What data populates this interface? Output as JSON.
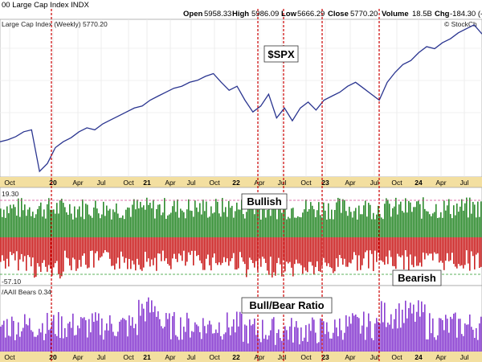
{
  "header": {
    "title": "00 Large Cap Index  INDX",
    "open_label": "Open",
    "open_value": "5958.33",
    "high_label": "High",
    "high_value": "5986.09",
    "low_label": "Low",
    "low_value": "5666.29",
    "close_label": "Close",
    "close_value": "5770.20",
    "volume_label": "Volume",
    "volume_value": "18.5B",
    "chg_label": "Chg",
    "chg_value": "-184.30 (-3.",
    "watermark": "© StockCh"
  },
  "panels": {
    "price_label": "Large Cap Index (Weekly) 5770.20",
    "sentiment_label": "19.30",
    "bear_level_label": "-57.10",
    "ratio_label": "/AAII Bears 0.34"
  },
  "annotations": {
    "spx": "$SPX",
    "bullish": "Bullish",
    "bearish": "Bearish",
    "ratio": "Bull/Bear Ratio"
  },
  "x_axis": {
    "ticks": [
      {
        "label": "Oct",
        "bold": false
      },
      {
        "label": "20",
        "bold": true
      },
      {
        "label": "Apr",
        "bold": false
      },
      {
        "label": "Jul",
        "bold": false
      },
      {
        "label": "Oct",
        "bold": false
      },
      {
        "label": "21",
        "bold": true
      },
      {
        "label": "Apr",
        "bold": false
      },
      {
        "label": "Jul",
        "bold": false
      },
      {
        "label": "Oct",
        "bold": false
      },
      {
        "label": "22",
        "bold": true
      },
      {
        "label": "Apr",
        "bold": false
      },
      {
        "label": "Jul",
        "bold": false
      },
      {
        "label": "Oct",
        "bold": false
      },
      {
        "label": "23",
        "bold": true
      },
      {
        "label": "Apr",
        "bold": false
      },
      {
        "label": "Jul",
        "bold": false
      },
      {
        "label": "Oct",
        "bold": false
      },
      {
        "label": "24",
        "bold": true
      },
      {
        "label": "Apr",
        "bold": false
      },
      {
        "label": "Jul",
        "bold": false
      },
      {
        "label": "Oct",
        "bold": false
      }
    ]
  },
  "colors": {
    "price_line": "#2a3590",
    "bull_bar": "#2e8b2e",
    "bear_bar": "#cc2222",
    "ratio_bar": "#8a3fd1",
    "marker_line": "#cc0000",
    "axis_band": "#f3dfa0",
    "bull_level": "#d4418e",
    "bear_level": "#2a9a2a"
  },
  "chart_data": {
    "type": "line",
    "series": [
      {
        "name": "Large Cap Index (Weekly)",
        "values": [
          3050,
          3100,
          3180,
          3300,
          3350,
          2300,
          2500,
          2900,
          3050,
          3150,
          3300,
          3400,
          3350,
          3500,
          3600,
          3700,
          3800,
          3900,
          3950,
          4100,
          4200,
          4300,
          4400,
          4450,
          4550,
          4600,
          4700,
          4770,
          4550,
          4350,
          4450,
          4100,
          3800,
          3950,
          4250,
          3650,
          3900,
          3580,
          3900,
          4050,
          3850,
          4100,
          4200,
          4300,
          4450,
          4550,
          4400,
          4250,
          4100,
          4550,
          4800,
          5000,
          5100,
          5300,
          5450,
          5400,
          5550,
          5650,
          5800,
          5900,
          6000,
          5770.2
        ]
      }
    ],
    "marker_events": [
      "Apr 20",
      "Jul 22",
      "Oct 22",
      "Apr 23",
      "Oct 23"
    ]
  }
}
